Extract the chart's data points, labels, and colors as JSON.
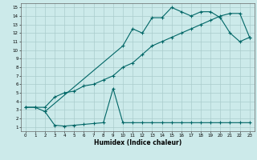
{
  "xlabel": "Humidex (Indice chaleur)",
  "bg_color": "#cceaea",
  "grid_color": "#aacccc",
  "line_color": "#006666",
  "xlim": [
    -0.5,
    23.5
  ],
  "ylim": [
    0.5,
    15.5
  ],
  "xticks": [
    0,
    1,
    2,
    3,
    4,
    5,
    6,
    7,
    8,
    9,
    10,
    11,
    12,
    13,
    14,
    15,
    16,
    17,
    18,
    19,
    20,
    21,
    22,
    23
  ],
  "yticks": [
    1,
    2,
    3,
    4,
    5,
    6,
    7,
    8,
    9,
    10,
    11,
    12,
    13,
    14,
    15
  ],
  "line1_x": [
    0,
    1,
    2,
    3,
    4,
    5,
    6,
    7,
    8,
    9,
    10,
    11,
    12,
    13,
    14,
    15,
    16,
    17,
    18,
    19,
    20,
    21,
    22,
    23
  ],
  "line1_y": [
    3.3,
    3.3,
    3.3,
    4.5,
    5.0,
    5.2,
    5.8,
    6.0,
    6.5,
    7.0,
    8.0,
    8.5,
    9.5,
    10.5,
    11.0,
    11.5,
    12.0,
    12.5,
    13.0,
    13.5,
    14.0,
    14.3,
    14.3,
    11.5
  ],
  "line2_x": [
    0,
    1,
    2,
    10,
    11,
    12,
    13,
    14,
    15,
    16,
    17,
    18,
    19,
    20,
    21,
    22,
    23
  ],
  "line2_y": [
    3.3,
    3.3,
    2.8,
    10.5,
    12.5,
    12.0,
    13.8,
    13.8,
    15.0,
    14.5,
    14.0,
    14.5,
    14.5,
    13.8,
    12.0,
    11.0,
    11.5
  ],
  "line3_x": [
    2,
    3,
    4,
    5,
    6,
    7,
    8,
    9,
    10,
    11,
    12,
    13,
    14,
    15,
    16,
    17,
    18,
    19,
    20,
    21,
    22,
    23
  ],
  "line3_y": [
    2.8,
    1.2,
    1.1,
    1.2,
    1.3,
    1.4,
    1.5,
    5.5,
    1.5,
    1.5,
    1.5,
    1.5,
    1.5,
    1.5,
    1.5,
    1.5,
    1.5,
    1.5,
    1.5,
    1.5,
    1.5,
    1.5
  ]
}
